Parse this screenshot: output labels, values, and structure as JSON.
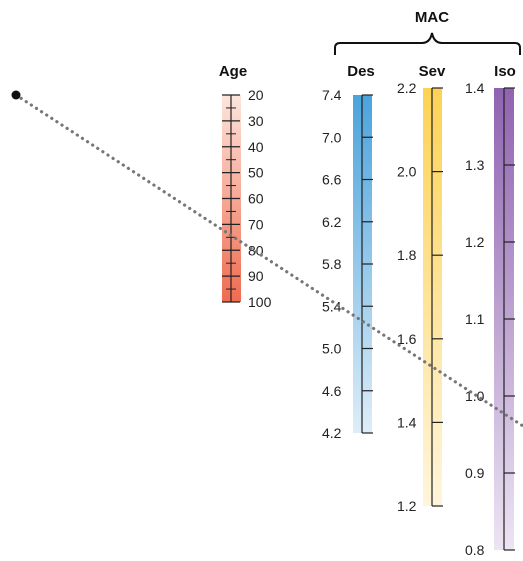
{
  "header": {
    "label": "MAC"
  },
  "scales": [
    {
      "id": "age",
      "label": "Age",
      "tick_values": [
        20,
        30,
        40,
        50,
        60,
        70,
        80,
        90,
        100
      ],
      "tick_labels": [
        "20",
        "30",
        "40",
        "50",
        "60",
        "70",
        "80",
        "90",
        "100"
      ],
      "color_top": "#fde5dc",
      "color_bottom": "#ef6b50"
    },
    {
      "id": "des",
      "label": "Des",
      "tick_values": [
        7.4,
        7.0,
        6.6,
        6.2,
        5.8,
        5.4,
        5.0,
        4.6,
        4.2
      ],
      "tick_labels": [
        "7.4",
        "7.0",
        "6.6",
        "6.2",
        "5.8",
        "5.4",
        "5.0",
        "4.6",
        "4.2"
      ],
      "color_top": "#4ba3dc",
      "color_bottom": "#deedf8"
    },
    {
      "id": "sev",
      "label": "Sev",
      "tick_values": [
        2.2,
        2.0,
        1.8,
        1.6,
        1.4,
        1.2
      ],
      "tick_labels": [
        "2.2",
        "2.0",
        "1.8",
        "1.6",
        "1.4",
        "1.2"
      ],
      "color_top": "#fdd255",
      "color_bottom": "#fff5dc"
    },
    {
      "id": "iso",
      "label": "Iso",
      "tick_values": [
        1.4,
        1.3,
        1.2,
        1.1,
        1.0,
        0.9,
        0.8
      ],
      "tick_labels": [
        "1.4",
        "1.3",
        "1.2",
        "1.1",
        "1.0",
        "0.9",
        "0.8"
      ],
      "color_top": "#9063b1",
      "color_bottom": "#ece4f3"
    }
  ],
  "reading_line": {
    "color": "#777777",
    "point_color": "#111111"
  }
}
